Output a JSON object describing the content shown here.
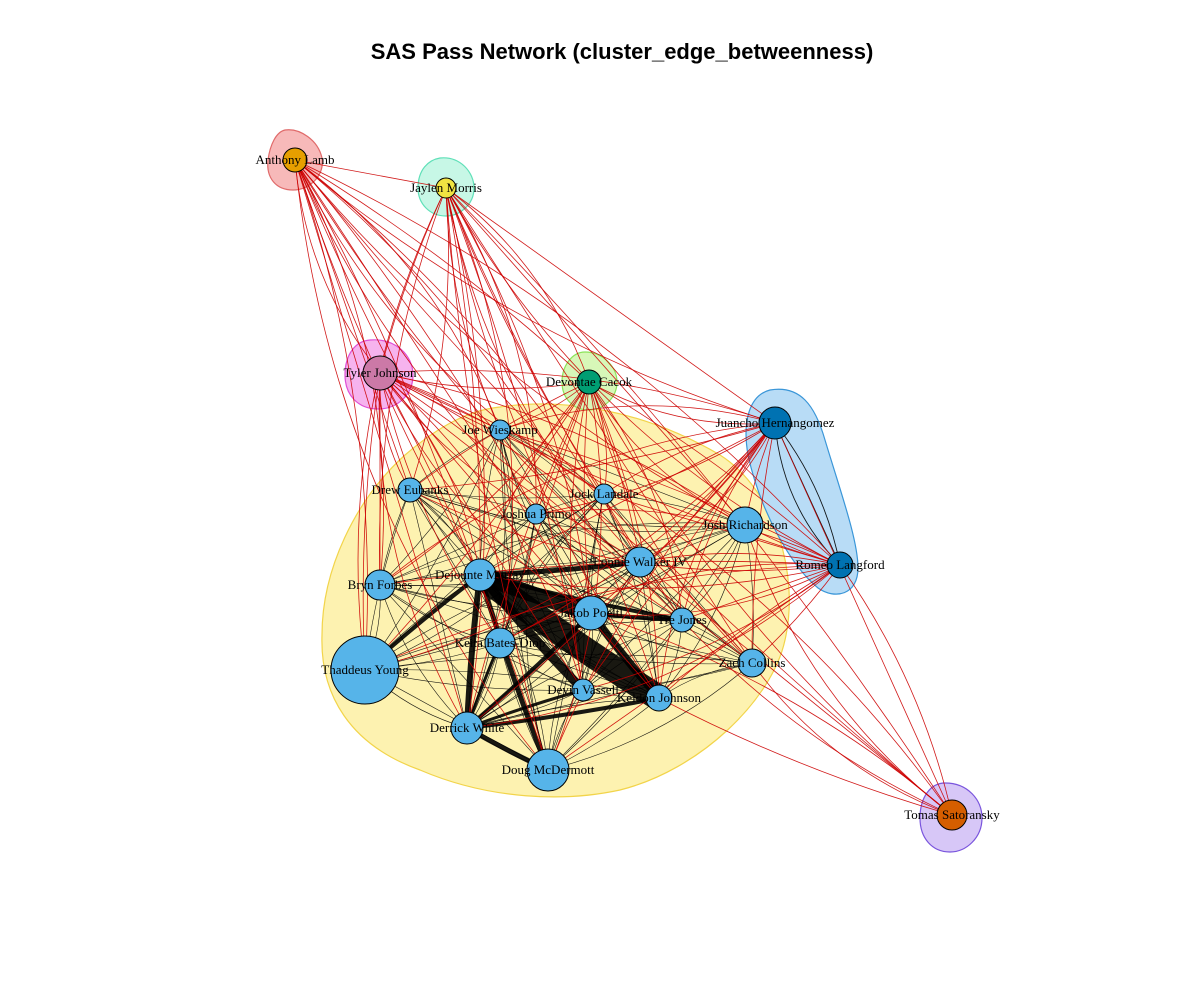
{
  "title": "SAS Pass Network (cluster_edge_betweenness)",
  "colors": {
    "intra_edge": "#000000",
    "inter_edge": "#cc0000",
    "node_border": "#000000"
  },
  "clusters": [
    {
      "id": "c_spurs",
      "fill": "#fdf2b0",
      "stroke": "#f2d44a"
    },
    {
      "id": "c_lamb",
      "fill": "#f7b9b9",
      "stroke": "#e06a6a"
    },
    {
      "id": "c_morris",
      "fill": "#c7f7e6",
      "stroke": "#5fe0b8"
    },
    {
      "id": "c_johnson",
      "fill": "#f6b3ee",
      "stroke": "#df4fd6"
    },
    {
      "id": "c_cacok",
      "fill": "#d7f7b8",
      "stroke": "#8ce35a"
    },
    {
      "id": "c_hl",
      "fill": "#b8dcf6",
      "stroke": "#3a96d8"
    },
    {
      "id": "c_sato",
      "fill": "#d7c7f7",
      "stroke": "#7a55dd"
    }
  ],
  "nodes": [
    {
      "id": "anthony_lamb",
      "label": "Anthony Lamb",
      "cluster": "c_lamb",
      "color": "#e69f00"
    },
    {
      "id": "jaylen_morris",
      "label": "Jaylen Morris",
      "cluster": "c_morris",
      "color": "#f0e442"
    },
    {
      "id": "tyler_johnson",
      "label": "Tyler Johnson",
      "cluster": "c_johnson",
      "color": "#cc79a7"
    },
    {
      "id": "devontae_cacok",
      "label": "Devontae Cacok",
      "cluster": "c_cacok",
      "color": "#009e73"
    },
    {
      "id": "juancho",
      "label": "Juancho Hernangomez",
      "cluster": "c_hl",
      "color": "#0072b2"
    },
    {
      "id": "romeo",
      "label": "Romeo Langford",
      "cluster": "c_hl",
      "color": "#0072b2"
    },
    {
      "id": "tomas",
      "label": "Tomas Satoransky",
      "cluster": "c_sato",
      "color": "#d55e00"
    },
    {
      "id": "joe_w",
      "label": "Joe Wieskamp",
      "cluster": "c_spurs",
      "color": "#56b4e9"
    },
    {
      "id": "drew_e",
      "label": "Drew Eubanks",
      "cluster": "c_spurs",
      "color": "#56b4e9"
    },
    {
      "id": "jock_l",
      "label": "Jock Landale",
      "cluster": "c_spurs",
      "color": "#56b4e9"
    },
    {
      "id": "joshua_p",
      "label": "Joshua Primo",
      "cluster": "c_spurs",
      "color": "#56b4e9"
    },
    {
      "id": "josh_r",
      "label": "Josh Richardson",
      "cluster": "c_spurs",
      "color": "#56b4e9"
    },
    {
      "id": "lonnie_w",
      "label": "Lonnie Walker IV",
      "cluster": "c_spurs",
      "color": "#56b4e9"
    },
    {
      "id": "dejounte",
      "label": "Dejounte Murray",
      "cluster": "c_spurs",
      "color": "#56b4e9"
    },
    {
      "id": "bryn_f",
      "label": "Bryn Forbes",
      "cluster": "c_spurs",
      "color": "#56b4e9"
    },
    {
      "id": "jakob_p",
      "label": "Jakob Poeltl",
      "cluster": "c_spurs",
      "color": "#56b4e9"
    },
    {
      "id": "tre_j",
      "label": "Tre Jones",
      "cluster": "c_spurs",
      "color": "#56b4e9"
    },
    {
      "id": "keita_b",
      "label": "Keita Bates-Diop",
      "cluster": "c_spurs",
      "color": "#56b4e9"
    },
    {
      "id": "zach_c",
      "label": "Zach Collins",
      "cluster": "c_spurs",
      "color": "#56b4e9"
    },
    {
      "id": "thaddeus_y",
      "label": "Thaddeus Young",
      "cluster": "c_spurs",
      "color": "#56b4e9"
    },
    {
      "id": "devin_v",
      "label": "Devin Vassell",
      "cluster": "c_spurs",
      "color": "#56b4e9"
    },
    {
      "id": "keldon_j",
      "label": "Keldon Johnson",
      "cluster": "c_spurs",
      "color": "#56b4e9"
    },
    {
      "id": "derrick_w",
      "label": "Derrick White",
      "cluster": "c_spurs",
      "color": "#56b4e9"
    },
    {
      "id": "doug_m",
      "label": "Doug McDermott",
      "cluster": "c_spurs",
      "color": "#56b4e9"
    }
  ]
}
